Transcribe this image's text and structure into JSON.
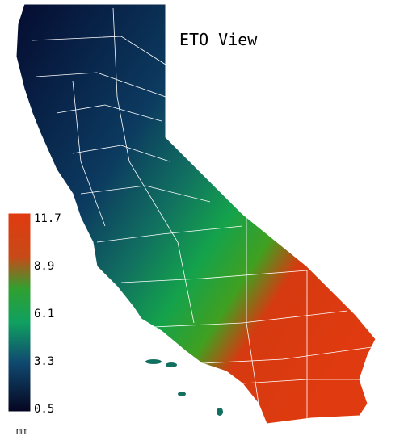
{
  "title": "ETO View",
  "legend": {
    "ticks": [
      11.7,
      8.9,
      6.1,
      3.3,
      0.5
    ],
    "unit": "mm"
  }
}
